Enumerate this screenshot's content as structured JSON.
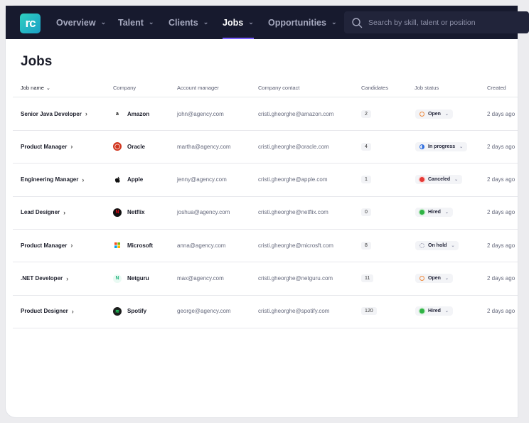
{
  "brand": {
    "logo_text": "rc",
    "accent": "#7b61ff"
  },
  "nav": {
    "items": [
      {
        "label": "Overview",
        "active": false
      },
      {
        "label": "Talent",
        "active": false
      },
      {
        "label": "Clients",
        "active": false
      },
      {
        "label": "Jobs",
        "active": true
      },
      {
        "label": "Opportunities",
        "active": false
      }
    ],
    "chevron_icon": "chevron-down-icon"
  },
  "search": {
    "placeholder": "Search by skill, talent or position",
    "icon": "search-icon"
  },
  "page": {
    "title": "Jobs"
  },
  "table": {
    "headers": {
      "job_name": "Job name",
      "company": "Company",
      "account_manager": "Account manager",
      "company_contact": "Company contact",
      "candidates": "Candidates",
      "job_status": "Job status",
      "created": "Created"
    },
    "rows": [
      {
        "job": "Senior Java Developer",
        "company": "Amazon",
        "company_icon": "amazon-logo-icon",
        "manager": "john@agency.com",
        "contact": "cristi.gheorghe@amazon.com",
        "candidates": "2",
        "status": "Open",
        "status_color": "#f08a3c",
        "created": "2 days ago"
      },
      {
        "job": "Product Manager",
        "company": "Oracle",
        "company_icon": "oracle-logo-icon",
        "manager": "martha@agency.com",
        "contact": "cristi.gheorghe@oracle.com",
        "candidates": "4",
        "status": "In progress",
        "status_color": "#2f6fe0",
        "created": "2 days ago"
      },
      {
        "job": "Engineering Manager",
        "company": "Apple",
        "company_icon": "apple-logo-icon",
        "manager": "jenny@agency.com",
        "contact": "cristi.gheorghe@apple.com",
        "candidates": "1",
        "status": "Canceled",
        "status_color": "#e53935",
        "created": "2 days ago"
      },
      {
        "job": "Lead Designer",
        "company": "Netflix",
        "company_icon": "netflix-logo-icon",
        "manager": "joshua@agency.com",
        "contact": "cristi.gheorghe@netflix.com",
        "candidates": "0",
        "status": "Hired",
        "status_color": "#2fb344",
        "created": "2 days ago"
      },
      {
        "job": "Product Manager",
        "company": "Microsoft",
        "company_icon": "microsoft-logo-icon",
        "manager": "anna@agency.com",
        "contact": "cristi.gheorghe@microsft.com",
        "candidates": "8",
        "status": "On hold",
        "status_color": "#8a8da4",
        "created": "2 days ago"
      },
      {
        "job": ".NET Developer",
        "company": "Netguru",
        "company_icon": "netguru-logo-icon",
        "manager": "max@agency.com",
        "contact": "cristi.gheorghe@netguru.com",
        "candidates": "11",
        "status": "Open",
        "status_color": "#f08a3c",
        "created": "2 days ago"
      },
      {
        "job": "Product Designer",
        "company": "Spotify",
        "company_icon": "spotify-logo-icon",
        "manager": "george@agency.com",
        "contact": "cristi.gheorghe@spotify.com",
        "candidates": "120",
        "status": "Hired",
        "status_color": "#2fb344",
        "created": "2 days ago"
      }
    ]
  }
}
